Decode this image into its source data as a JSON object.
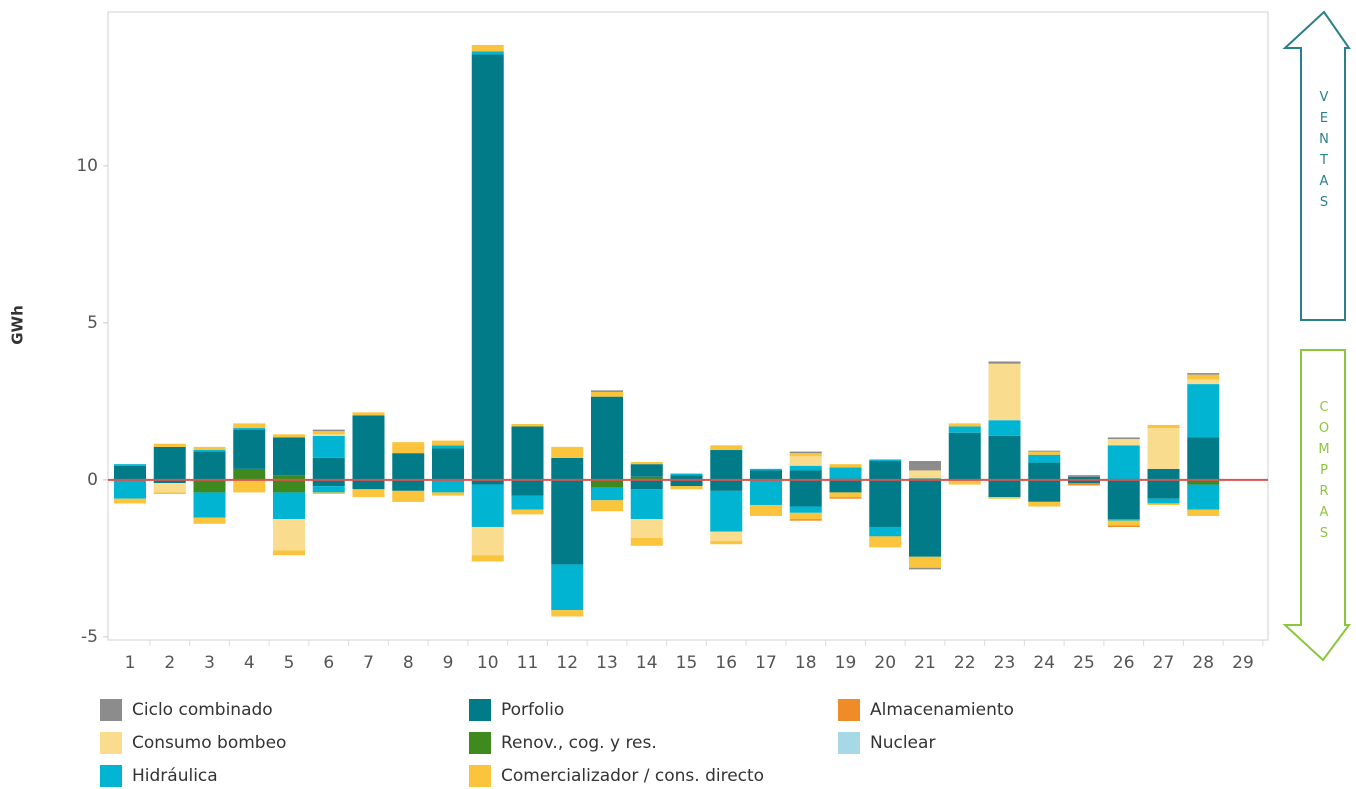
{
  "chart_data": {
    "type": "stacked_bar",
    "y_label": "GWh",
    "categories": [
      "1",
      "2",
      "3",
      "4",
      "5",
      "6",
      "7",
      "8",
      "9",
      "10",
      "11",
      "12",
      "13",
      "14",
      "15",
      "16",
      "17",
      "18",
      "19",
      "20",
      "21",
      "22",
      "23",
      "24",
      "25",
      "26",
      "27",
      "28",
      "29"
    ],
    "ylim": [
      -5.1,
      14.9
    ],
    "yticks": [
      -5,
      0,
      5,
      10
    ],
    "grid": false,
    "zero_line_color": "#d9534f",
    "annotations": [
      "VENTAS",
      "COMPRAS"
    ],
    "series": [
      {
        "name": "Ciclo combinado",
        "color": "#8c8c8c",
        "values": [
          null,
          null,
          null,
          null,
          null,
          0.05,
          null,
          null,
          null,
          null,
          null,
          null,
          0.05,
          null,
          null,
          null,
          null,
          0.05,
          null,
          null,
          0.3,
          null,
          0.07,
          0.03,
          0.05,
          0.05,
          null,
          0.05,
          null
        ],
        "negative_values": [
          null,
          null,
          null,
          null,
          null,
          null,
          null,
          null,
          null,
          null,
          null,
          null,
          null,
          null,
          null,
          null,
          null,
          null,
          null,
          null,
          -0.05,
          null,
          null,
          null,
          null,
          null,
          null,
          null,
          null
        ]
      },
      {
        "name": "Consumo bombeo",
        "color": "#fadc8f",
        "values": [
          null,
          null,
          null,
          null,
          null,
          0.05,
          null,
          null,
          null,
          null,
          null,
          null,
          null,
          null,
          null,
          null,
          null,
          0.3,
          null,
          null,
          0.25,
          null,
          1.8,
          null,
          null,
          0.2,
          1.3,
          0.15,
          null
        ],
        "negative_values": [
          null,
          -0.3,
          null,
          null,
          -1.0,
          null,
          null,
          null,
          null,
          -0.9,
          null,
          null,
          null,
          -0.6,
          null,
          -0.3,
          null,
          null,
          null,
          null,
          null,
          null,
          null,
          null,
          null,
          null,
          null,
          null,
          null
        ]
      },
      {
        "name": "Hidráulica",
        "color": "#00b4d2",
        "values": [
          0.05,
          null,
          0.05,
          0.05,
          null,
          0.7,
          null,
          null,
          0.1,
          0.1,
          null,
          null,
          null,
          null,
          0.05,
          null,
          0.05,
          0.15,
          0.35,
          0.05,
          null,
          0.2,
          0.5,
          0.25,
          null,
          1.1,
          null,
          1.7,
          null
        ],
        "negative_values": [
          -0.6,
          null,
          -0.8,
          null,
          -0.85,
          -0.2,
          null,
          null,
          -0.4,
          -1.35,
          -0.45,
          -1.45,
          -0.4,
          -0.95,
          null,
          -1.3,
          -0.8,
          -0.2,
          null,
          -0.3,
          null,
          null,
          null,
          null,
          null,
          -0.05,
          -0.15,
          -0.8,
          null
        ]
      },
      {
        "name": "Porfolio",
        "color": "#007b87",
        "values": [
          0.45,
          1.05,
          0.9,
          1.25,
          1.2,
          0.7,
          2.05,
          0.85,
          1.0,
          13.55,
          1.7,
          0.7,
          2.65,
          0.4,
          0.15,
          0.95,
          0.3,
          0.3,
          0.05,
          0.6,
          0.05,
          1.5,
          1.4,
          0.55,
          0.1,
          null,
          0.35,
          1.35,
          null
        ],
        "negative_values": [
          null,
          -0.1,
          null,
          null,
          null,
          -0.2,
          -0.3,
          -0.35,
          null,
          -0.15,
          -0.5,
          -2.7,
          null,
          -0.3,
          -0.2,
          -0.35,
          null,
          -0.85,
          -0.4,
          -1.5,
          -2.45,
          null,
          -0.55,
          -0.7,
          -0.1,
          -1.25,
          -0.6,
          null,
          null
        ]
      },
      {
        "name": "Renov., cog. y res.",
        "color": "#3e8a1e",
        "values": [
          null,
          null,
          null,
          0.35,
          0.15,
          null,
          null,
          null,
          null,
          null,
          null,
          null,
          null,
          0.1,
          null,
          null,
          null,
          null,
          null,
          null,
          null,
          null,
          null,
          null,
          null,
          null,
          null,
          null,
          null
        ],
        "negative_values": [
          null,
          null,
          -0.4,
          null,
          -0.4,
          null,
          null,
          null,
          null,
          null,
          null,
          null,
          -0.25,
          null,
          null,
          null,
          null,
          null,
          null,
          null,
          null,
          null,
          null,
          null,
          null,
          null,
          null,
          -0.15,
          null
        ]
      },
      {
        "name": "Comercializador / cons. directo",
        "color": "#fac43c",
        "values": [
          null,
          0.1,
          0.1,
          0.15,
          0.1,
          0.1,
          0.1,
          0.35,
          0.15,
          0.2,
          0.08,
          0.35,
          0.15,
          0.07,
          null,
          0.15,
          null,
          0.1,
          0.1,
          null,
          null,
          0.1,
          null,
          0.1,
          null,
          null,
          0.1,
          0.15,
          null
        ],
        "negative_values": [
          -0.15,
          -0.05,
          -0.2,
          -0.4,
          -0.15,
          -0.05,
          -0.25,
          -0.35,
          -0.1,
          -0.2,
          -0.15,
          -0.2,
          -0.35,
          -0.25,
          -0.1,
          -0.1,
          -0.35,
          -0.2,
          -0.15,
          -0.35,
          -0.35,
          -0.15,
          -0.05,
          -0.15,
          null,
          -0.15,
          -0.05,
          -0.2,
          null
        ]
      },
      {
        "name": "Almacenamiento",
        "color": "#f08c28",
        "values": [
          null,
          null,
          null,
          null,
          null,
          null,
          null,
          null,
          null,
          null,
          null,
          null,
          null,
          null,
          null,
          null,
          null,
          null,
          null,
          null,
          null,
          null,
          null,
          null,
          null,
          null,
          null,
          null,
          null
        ],
        "negative_values": [
          null,
          null,
          null,
          null,
          null,
          null,
          null,
          null,
          null,
          null,
          null,
          null,
          null,
          null,
          null,
          null,
          null,
          -0.05,
          -0.05,
          null,
          null,
          null,
          null,
          null,
          -0.08,
          -0.05,
          null,
          null,
          null
        ]
      },
      {
        "name": "Nuclear",
        "color": "#a6d8e6",
        "values": [
          null,
          null,
          null,
          null,
          null,
          null,
          null,
          null,
          null,
          null,
          null,
          null,
          null,
          null,
          null,
          null,
          null,
          null,
          null,
          null,
          null,
          null,
          null,
          null,
          null,
          null,
          null,
          null,
          null
        ],
        "negative_values": [
          null,
          null,
          null,
          null,
          null,
          null,
          null,
          null,
          null,
          null,
          null,
          null,
          null,
          null,
          null,
          null,
          null,
          null,
          null,
          null,
          null,
          null,
          null,
          null,
          null,
          null,
          null,
          null,
          null
        ]
      }
    ]
  }
}
